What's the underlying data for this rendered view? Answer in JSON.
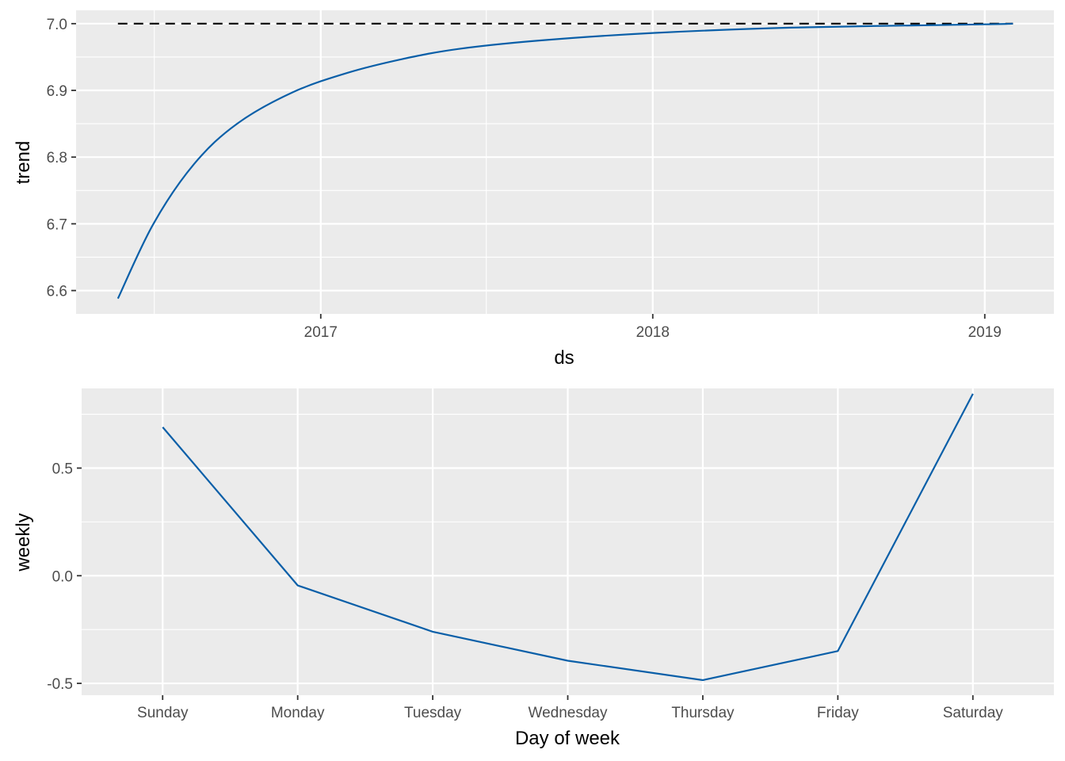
{
  "chart_data": [
    {
      "type": "line",
      "xlabel": "ds",
      "ylabel": "trend",
      "x_ticks": [
        "2017",
        "2018",
        "2019"
      ],
      "y_ticks": [
        "6.6",
        "6.7",
        "6.8",
        "6.9",
        "7.0"
      ],
      "ylim": [
        6.565,
        7.02
      ],
      "xlim": [
        "2016-04-07",
        "2019-03-18"
      ],
      "grid": true,
      "series": [
        {
          "color": "#0a5fa8",
          "x": [
            "2016-05-23",
            "2016-07-01",
            "2016-08-15",
            "2016-10-01",
            "2016-12-01",
            "2017-02-01",
            "2017-04-01",
            "2017-06-01",
            "2017-09-01",
            "2018-01-01",
            "2018-06-01",
            "2019-01-01",
            "2019-02-01"
          ],
          "values": [
            6.588,
            6.7,
            6.79,
            6.85,
            6.897,
            6.927,
            6.947,
            6.962,
            6.975,
            6.986,
            6.994,
            6.999,
            7.0
          ]
        }
      ],
      "cap": {
        "value": 7.0,
        "x": [
          "2016-05-23",
          "2019-02-01"
        ],
        "style": "dashed",
        "color": "#000000"
      }
    },
    {
      "type": "line",
      "xlabel": "Day of week",
      "ylabel": "weekly",
      "categories": [
        "Sunday",
        "Monday",
        "Tuesday",
        "Wednesday",
        "Thursday",
        "Friday",
        "Saturday"
      ],
      "y_ticks": [
        "-0.5",
        "0.0",
        "0.5"
      ],
      "ylim": [
        -0.555,
        0.87
      ],
      "grid": true,
      "series": [
        {
          "color": "#0a5fa8",
          "values": [
            0.69,
            -0.045,
            -0.26,
            -0.395,
            -0.485,
            -0.35,
            0.845
          ]
        }
      ]
    }
  ]
}
